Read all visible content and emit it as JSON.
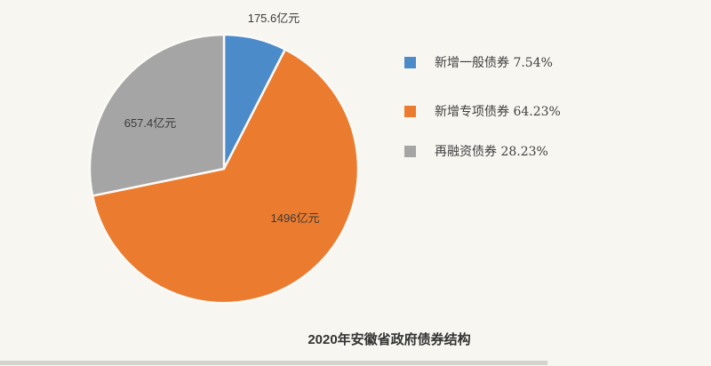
{
  "page": {
    "background_color": "#F8F6F0"
  },
  "chart_data": {
    "type": "pie",
    "title": "2020年安徽省政府债券结构",
    "unit": "亿元",
    "legend_position": "right",
    "start_angle_deg": 0,
    "clockwise": true,
    "slice_border_color": "#FBFAF7",
    "series": [
      {
        "name": "新增一般债券",
        "pct": 7.54,
        "value": 175.6,
        "value_label": "175.6亿元",
        "legend_text": "新增一般债券 7.54%",
        "color": "#4C8BC9"
      },
      {
        "name": "新增专项债券",
        "pct": 64.23,
        "value": 1496,
        "value_label": "1496亿元",
        "legend_text": "新增专项债券 64.23%",
        "color": "#EB7C2F"
      },
      {
        "name": "再融资债券",
        "pct": 28.23,
        "value": 657.4,
        "value_label": "657.4亿元",
        "legend_text": "再融资债券 28.23%",
        "color": "#A5A5A5"
      }
    ]
  }
}
